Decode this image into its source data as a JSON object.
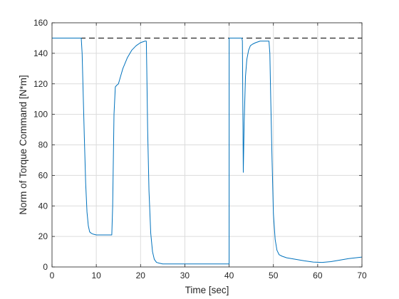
{
  "chart_data": {
    "type": "line",
    "xlabel": "Time [sec]",
    "ylabel": "Norm of Torque Command [N*m]",
    "xlim": [
      0,
      70
    ],
    "ylim": [
      0,
      160
    ],
    "xticks": [
      0,
      10,
      20,
      30,
      40,
      50,
      60,
      70
    ],
    "yticks": [
      0,
      20,
      40,
      60,
      80,
      100,
      120,
      140,
      160
    ],
    "grid": true,
    "colors": {
      "series": "#0072BD",
      "reference": "#000000",
      "grid": "#dcdcdc",
      "axis": "#262626"
    },
    "reference_line": {
      "y": 150,
      "style": "dashed"
    },
    "series": [
      {
        "x": [
          0,
          6.6,
          6.8,
          7.0,
          7.3,
          7.6,
          7.9,
          8.2,
          8.5,
          8.9,
          9.3,
          10,
          11,
          12,
          13.5,
          13.7,
          14.0,
          14.3,
          14.6,
          15.0,
          15.5,
          16,
          17,
          18,
          19,
          20,
          21,
          21.3,
          21.4,
          21.6,
          21.9,
          22.3,
          22.7,
          23.1,
          23.6,
          24.2,
          25,
          30,
          35,
          39.9,
          40.0,
          40.01,
          42.9,
          43.0,
          43.2,
          43.4,
          43.7,
          44.0,
          44.4,
          44.8,
          45.3,
          46,
          47,
          48,
          49,
          49.2,
          49.4,
          49.7,
          50.0,
          50.4,
          50.8,
          51.3,
          52,
          53,
          55,
          57,
          59,
          61,
          63,
          65,
          67,
          70
        ],
        "y": [
          150,
          150,
          140,
          118,
          85,
          55,
          36,
          27,
          23,
          22,
          21.5,
          21,
          21,
          21,
          21,
          40,
          100,
          118,
          119,
          120,
          125,
          130,
          137,
          142,
          145,
          147,
          148,
          148,
          130,
          90,
          50,
          22,
          10,
          5,
          3,
          2.5,
          2,
          2,
          2,
          2,
          2,
          150,
          150,
          148,
          62,
          95,
          125,
          136,
          142,
          145,
          146,
          147,
          148,
          148,
          148,
          140,
          110,
          70,
          35,
          18,
          11,
          8,
          7,
          6,
          5,
          4,
          3.2,
          3,
          3.5,
          4.5,
          5.5,
          6.5
        ]
      }
    ]
  }
}
